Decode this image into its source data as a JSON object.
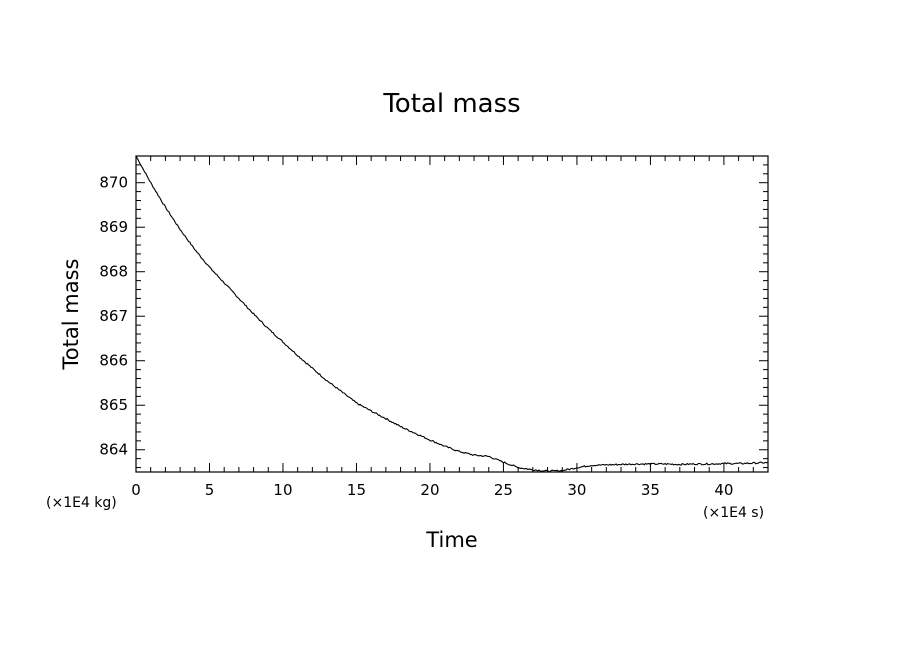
{
  "chart_data": {
    "type": "line",
    "title": "Total mass",
    "xlabel": "Time",
    "ylabel": "Total mass",
    "x_unit": "(×1E4 s)",
    "y_unit": "(×1E4 kg)",
    "xlim": [
      0,
      43
    ],
    "ylim": [
      863.5,
      870.6
    ],
    "x_ticks": [
      0,
      5,
      10,
      15,
      20,
      25,
      30,
      35,
      40
    ],
    "y_ticks": [
      864,
      865,
      866,
      867,
      868,
      869,
      870
    ],
    "grid": false,
    "line_color": "#000000",
    "series": [
      {
        "x": [
          0,
          1,
          2,
          3,
          4,
          5,
          6,
          7,
          8,
          9,
          10,
          11,
          12,
          13,
          14,
          15,
          16,
          17,
          18,
          19,
          20,
          21,
          22,
          23,
          24,
          25,
          26,
          27,
          28,
          29,
          30,
          31,
          32,
          33,
          34,
          35,
          36,
          37,
          38,
          39,
          40,
          41,
          42,
          43
        ],
        "values": [
          870.6,
          870.0,
          869.45,
          868.95,
          868.5,
          868.1,
          867.75,
          867.4,
          867.05,
          866.72,
          866.42,
          866.12,
          865.83,
          865.55,
          865.3,
          865.05,
          864.87,
          864.7,
          864.52,
          864.37,
          864.22,
          864.08,
          863.96,
          863.88,
          863.85,
          863.72,
          863.6,
          863.55,
          863.52,
          863.53,
          863.6,
          863.65,
          863.66,
          863.67,
          863.68,
          863.68,
          863.68,
          863.67,
          863.68,
          863.68,
          863.69,
          863.69,
          863.7,
          863.71
        ]
      }
    ]
  }
}
